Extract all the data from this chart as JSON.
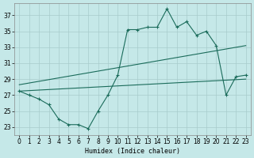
{
  "xlabel": "Humidex (Indice chaleur)",
  "background_color": "#c5e8e8",
  "grid_color": "#a8cccc",
  "line_color": "#1a6b5a",
  "ylim": [
    22.0,
    38.5
  ],
  "xlim": [
    -0.5,
    23.5
  ],
  "yticks": [
    23,
    25,
    27,
    29,
    31,
    33,
    35,
    37
  ],
  "xticks": [
    0,
    1,
    2,
    3,
    4,
    5,
    6,
    7,
    8,
    9,
    10,
    11,
    12,
    13,
    14,
    15,
    16,
    17,
    18,
    19,
    20,
    21,
    22,
    23
  ],
  "main_x": [
    0,
    1,
    2,
    3,
    4,
    5,
    6,
    7,
    8,
    9,
    10,
    11,
    12,
    13,
    14,
    15,
    16,
    17,
    18,
    19,
    20,
    21,
    22,
    23
  ],
  "main_y": [
    27.5,
    27.0,
    26.5,
    25.8,
    24.0,
    23.3,
    23.3,
    22.8,
    25.0,
    27.0,
    29.5,
    35.2,
    35.2,
    35.5,
    35.5,
    37.8,
    35.5,
    36.2,
    34.5,
    35.0,
    33.2,
    27.0,
    29.3,
    29.5
  ],
  "trend1_x": [
    0,
    23
  ],
  "trend1_y": [
    28.3,
    33.2
  ],
  "trend2_x": [
    0,
    23
  ],
  "trend2_y": [
    27.5,
    29.0
  ]
}
